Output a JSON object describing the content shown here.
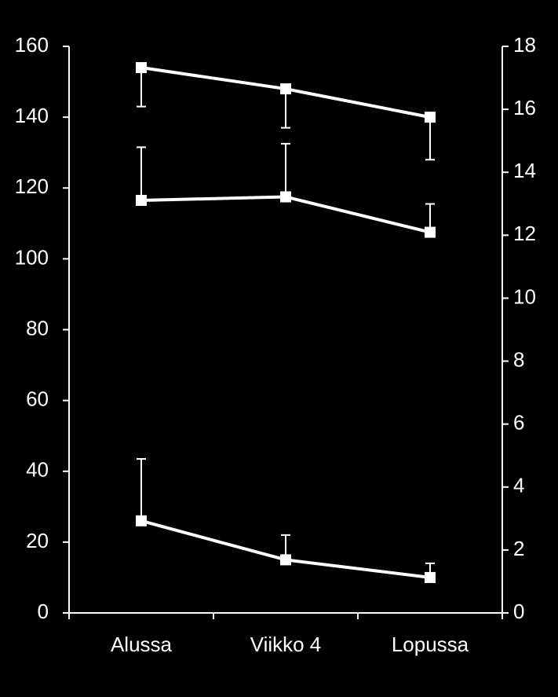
{
  "chart_data": {
    "type": "line",
    "categories": [
      "Alussa",
      "Viikko 4",
      "Lopussa"
    ],
    "series": [
      {
        "color": "#ffffff",
        "values": [
          154,
          148,
          140
        ],
        "errors": [
          11,
          11,
          12
        ],
        "error_side": "minus"
      },
      {
        "color": "#ffffff",
        "values": [
          116.5,
          117.5,
          107.5
        ],
        "errors": [
          15,
          15,
          8
        ],
        "error_side": "plus"
      },
      {
        "color": "#ffffff",
        "values": [
          26,
          15,
          10
        ],
        "errors": [
          17.5,
          7,
          4
        ],
        "error_side": "plus"
      }
    ],
    "ylim": [
      0,
      160
    ],
    "yticks": [
      0,
      20,
      40,
      60,
      80,
      100,
      120,
      140,
      160
    ],
    "y2lim": [
      0,
      18
    ],
    "y2ticks": [
      0,
      2,
      4,
      6,
      8,
      10,
      12,
      14,
      16,
      18
    ],
    "grid": false,
    "background": "#000000"
  }
}
